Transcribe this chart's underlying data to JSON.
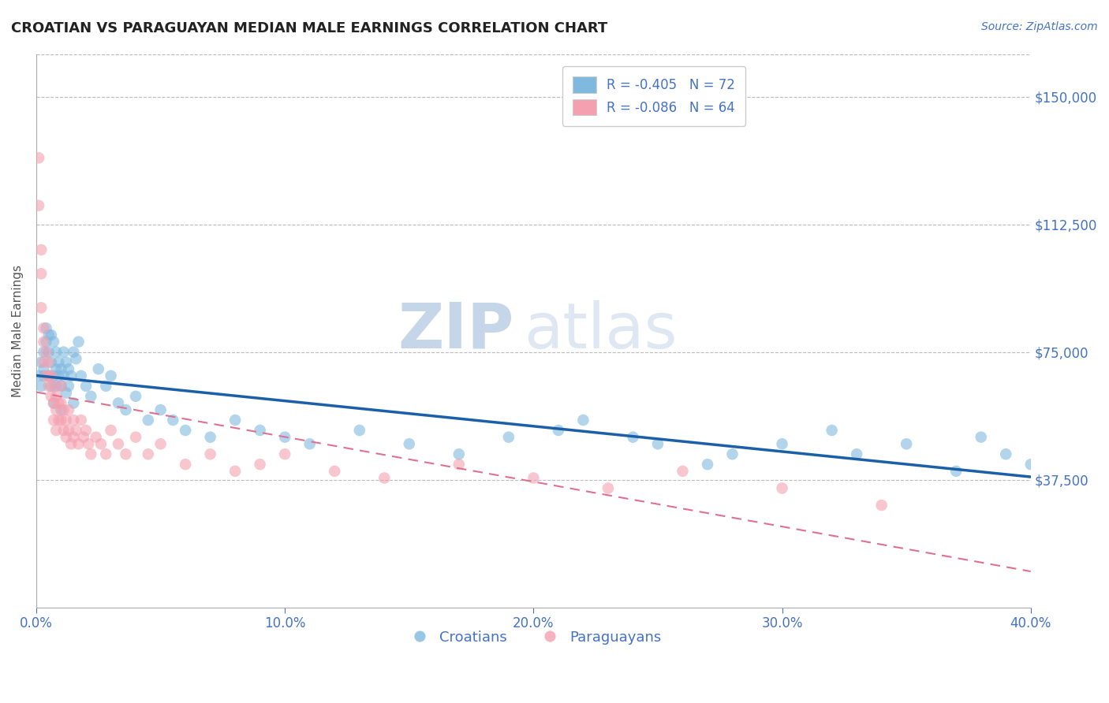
{
  "title": "CROATIAN VS PARAGUAYAN MEDIAN MALE EARNINGS CORRELATION CHART",
  "source_text": "Source: ZipAtlas.com",
  "ylabel": "Median Male Earnings",
  "xlim": [
    0.0,
    0.4
  ],
  "ylim": [
    0,
    162500
  ],
  "yticks": [
    0,
    37500,
    75000,
    112500,
    150000
  ],
  "ytick_labels": [
    "",
    "$37,500",
    "$75,000",
    "$112,500",
    "$150,000"
  ],
  "xticks": [
    0.0,
    0.1,
    0.2,
    0.3,
    0.4
  ],
  "xtick_labels": [
    "0.0%",
    "10.0%",
    "20.0%",
    "30.0%",
    "40.0%"
  ],
  "croatian_R": -0.405,
  "croatian_N": 72,
  "paraguayan_R": -0.086,
  "paraguayan_N": 64,
  "croatian_color": "#7fb9e0",
  "paraguayan_color": "#f4a0b0",
  "trend_blue": "#1a5fa8",
  "trend_pink": "#e07090",
  "axis_color": "#4472c4",
  "watermark_ZIP": "ZIP",
  "watermark_atlas": "atlas",
  "croatian_x": [
    0.001,
    0.002,
    0.002,
    0.003,
    0.003,
    0.003,
    0.004,
    0.004,
    0.005,
    0.005,
    0.005,
    0.006,
    0.006,
    0.006,
    0.007,
    0.007,
    0.007,
    0.008,
    0.008,
    0.008,
    0.009,
    0.009,
    0.01,
    0.01,
    0.01,
    0.011,
    0.011,
    0.012,
    0.012,
    0.013,
    0.013,
    0.014,
    0.015,
    0.015,
    0.016,
    0.017,
    0.018,
    0.02,
    0.022,
    0.025,
    0.028,
    0.03,
    0.033,
    0.036,
    0.04,
    0.045,
    0.05,
    0.055,
    0.06,
    0.07,
    0.08,
    0.09,
    0.1,
    0.11,
    0.13,
    0.15,
    0.17,
    0.19,
    0.22,
    0.25,
    0.28,
    0.32,
    0.35,
    0.38,
    0.4,
    0.39,
    0.37,
    0.33,
    0.3,
    0.27,
    0.24,
    0.21
  ],
  "croatian_y": [
    68000,
    72000,
    65000,
    75000,
    70000,
    68000,
    82000,
    78000,
    80000,
    75000,
    68000,
    80000,
    72000,
    65000,
    78000,
    68000,
    60000,
    75000,
    70000,
    65000,
    72000,
    68000,
    70000,
    65000,
    58000,
    75000,
    68000,
    72000,
    63000,
    70000,
    65000,
    68000,
    75000,
    60000,
    73000,
    78000,
    68000,
    65000,
    62000,
    70000,
    65000,
    68000,
    60000,
    58000,
    62000,
    55000,
    58000,
    55000,
    52000,
    50000,
    55000,
    52000,
    50000,
    48000,
    52000,
    48000,
    45000,
    50000,
    55000,
    48000,
    45000,
    52000,
    48000,
    50000,
    42000,
    45000,
    40000,
    45000,
    48000,
    42000,
    50000,
    52000
  ],
  "paraguayan_x": [
    0.001,
    0.001,
    0.002,
    0.002,
    0.002,
    0.003,
    0.003,
    0.003,
    0.004,
    0.004,
    0.005,
    0.005,
    0.005,
    0.006,
    0.006,
    0.007,
    0.007,
    0.007,
    0.008,
    0.008,
    0.008,
    0.009,
    0.009,
    0.01,
    0.01,
    0.01,
    0.011,
    0.011,
    0.012,
    0.012,
    0.013,
    0.013,
    0.014,
    0.015,
    0.015,
    0.016,
    0.017,
    0.018,
    0.019,
    0.02,
    0.021,
    0.022,
    0.024,
    0.026,
    0.028,
    0.03,
    0.033,
    0.036,
    0.04,
    0.045,
    0.05,
    0.06,
    0.07,
    0.08,
    0.09,
    0.1,
    0.12,
    0.14,
    0.17,
    0.2,
    0.23,
    0.26,
    0.3,
    0.34
  ],
  "paraguayan_y": [
    132000,
    118000,
    105000,
    98000,
    88000,
    82000,
    78000,
    72000,
    75000,
    68000,
    72000,
    68000,
    65000,
    68000,
    62000,
    65000,
    60000,
    55000,
    62000,
    58000,
    52000,
    60000,
    55000,
    65000,
    60000,
    55000,
    58000,
    52000,
    55000,
    50000,
    58000,
    52000,
    48000,
    55000,
    50000,
    52000,
    48000,
    55000,
    50000,
    52000,
    48000,
    45000,
    50000,
    48000,
    45000,
    52000,
    48000,
    45000,
    50000,
    45000,
    48000,
    42000,
    45000,
    40000,
    42000,
    45000,
    40000,
    38000,
    42000,
    38000,
    35000,
    40000,
    35000,
    30000
  ]
}
